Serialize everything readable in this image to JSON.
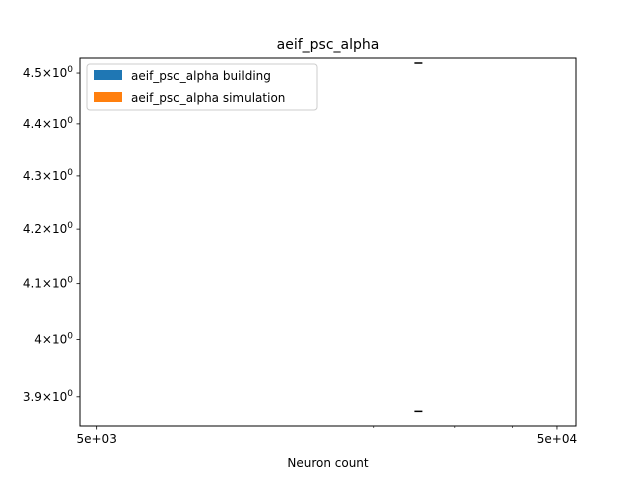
{
  "chart_data": {
    "type": "bar",
    "title": "aeif_psc_alpha",
    "xlabel": "Neuron count",
    "ylabel": "",
    "xscale": "log",
    "yscale": "log",
    "xlim": [
      4600,
      55000
    ],
    "ylim": [
      3.85,
      4.53
    ],
    "x_ticks": [
      {
        "value": 5000,
        "label": "5e+03"
      },
      {
        "value": 50000,
        "label": "5e+04"
      }
    ],
    "y_ticks": [
      {
        "value": 3.9,
        "label_mantissa": "3.9",
        "label_exp": "0"
      },
      {
        "value": 4.0,
        "label_mantissa": "4",
        "label_exp": "0"
      },
      {
        "value": 4.1,
        "label_mantissa": "4.1",
        "label_exp": "0"
      },
      {
        "value": 4.2,
        "label_mantissa": "4.2",
        "label_exp": "0"
      },
      {
        "value": 4.3,
        "label_mantissa": "4.3",
        "label_exp": "0"
      },
      {
        "value": 4.4,
        "label_mantissa": "4.4",
        "label_exp": "0"
      },
      {
        "value": 4.5,
        "label_mantissa": "4.5",
        "label_exp": "0"
      }
    ],
    "x_minor_ticks": [
      20000,
      30000,
      40000
    ],
    "series": [
      {
        "name": "aeif_psc_alpha building",
        "color": "#1f77b4"
      },
      {
        "name": "aeif_psc_alpha simulation",
        "color": "#ff7f0e"
      }
    ],
    "error_marks": [
      {
        "x": 25000,
        "y": 4.52
      },
      {
        "x": 25000,
        "y": 3.875
      }
    ],
    "grid": false,
    "legend_position": "upper left"
  }
}
